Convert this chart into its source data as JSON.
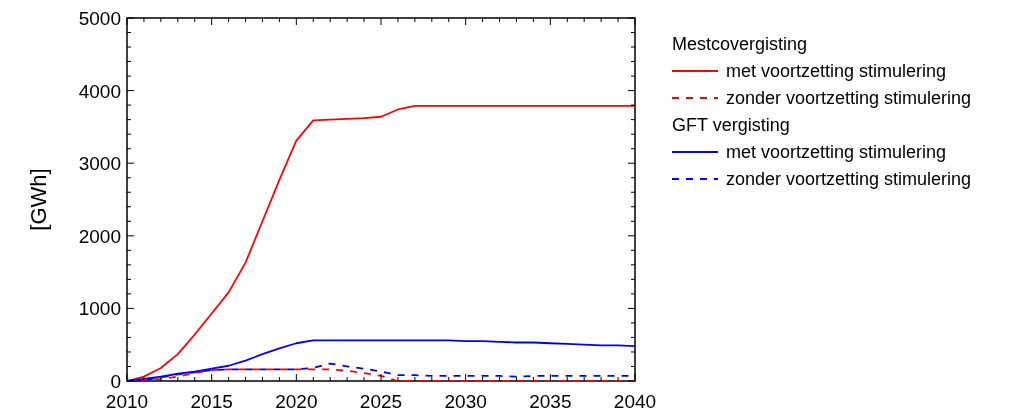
{
  "chart_data": {
    "type": "line",
    "ylabel": "[GWh]",
    "annotations": [
      "Mestcovergisting",
      "GFT vergisting"
    ],
    "x": [
      2010,
      2011,
      2012,
      2013,
      2014,
      2015,
      2016,
      2017,
      2018,
      2019,
      2020,
      2021,
      2022,
      2023,
      2024,
      2025,
      2026,
      2027,
      2028,
      2029,
      2030,
      2031,
      2032,
      2033,
      2034,
      2035,
      2036,
      2037,
      2038,
      2039,
      2040
    ],
    "series": [
      {
        "name": "met voortzetting stimulering",
        "color": "#ff0000",
        "line_style": "solid",
        "values": [
          0,
          60,
          180,
          370,
          640,
          930,
          1220,
          1630,
          2200,
          2770,
          3310,
          3590,
          3600,
          3610,
          3620,
          3640,
          3740,
          3790,
          3790,
          3790,
          3790,
          3790,
          3790,
          3790,
          3790,
          3790,
          3790,
          3790,
          3790,
          3790,
          3790
        ]
      },
      {
        "name": "zonder voortzetting stimulering",
        "color": "#ff0000",
        "line_style": "dashed",
        "values": [
          0,
          10,
          30,
          60,
          110,
          150,
          160,
          160,
          160,
          160,
          160,
          160,
          160,
          140,
          110,
          70,
          0,
          0,
          0,
          0,
          0,
          0,
          0,
          0,
          0,
          0,
          0,
          0,
          0,
          0,
          0
        ]
      },
      {
        "name": "met voortzetting stimulering",
        "color": "#0000ff",
        "line_style": "solid",
        "values": [
          0,
          30,
          60,
          100,
          130,
          170,
          210,
          280,
          370,
          450,
          520,
          560,
          560,
          560,
          560,
          560,
          560,
          560,
          560,
          560,
          550,
          550,
          540,
          530,
          530,
          520,
          510,
          500,
          490,
          490,
          480
        ]
      },
      {
        "name": "zonder voortzetting stimulering",
        "color": "#0000ff",
        "line_style": "dashed",
        "values": [
          0,
          10,
          50,
          90,
          120,
          150,
          160,
          160,
          160,
          160,
          160,
          180,
          240,
          200,
          170,
          130,
          80,
          80,
          70,
          70,
          70,
          70,
          70,
          60,
          70,
          70,
          70,
          70,
          70,
          70,
          70
        ]
      }
    ],
    "xlim": [
      2010,
      2040
    ],
    "ylim": [
      0,
      5000
    ],
    "xticks": [
      2010,
      {
        "value": 2011,
        "label": null
      },
      {
        "value": 2012,
        "label": null
      },
      {
        "value": 2013,
        "label": null
      },
      {
        "value": 2014,
        "label": null
      },
      2015,
      {
        "value": 2016,
        "label": null
      },
      {
        "value": 2017,
        "label": null
      },
      {
        "value": 2018,
        "label": null
      },
      {
        "value": 2019,
        "label": null
      },
      2020,
      {
        "value": 2021,
        "label": null
      },
      {
        "value": 2022,
        "label": null
      },
      {
        "value": 2023,
        "label": null
      },
      {
        "value": 2024,
        "label": null
      },
      2025,
      {
        "value": 2026,
        "label": null
      },
      {
        "value": 2027,
        "label": null
      },
      {
        "value": 2028,
        "label": null
      },
      {
        "value": 2029,
        "label": null
      },
      2030,
      {
        "value": 2031,
        "label": null
      },
      {
        "value": 2032,
        "label": null
      },
      {
        "value": 2033,
        "label": null
      },
      {
        "value": 2034,
        "label": null
      },
      2035,
      {
        "value": 2036,
        "label": null
      },
      {
        "value": 2037,
        "label": null
      },
      {
        "value": 2038,
        "label": null
      },
      {
        "value": 2039,
        "label": null
      },
      2040
    ],
    "yticks": [
      0,
      {
        "value": 200,
        "label": null
      },
      {
        "value": 400,
        "label": null
      },
      {
        "value": 600,
        "label": null
      },
      {
        "value": 800,
        "label": null
      },
      1000,
      {
        "value": 1200,
        "label": null
      },
      {
        "value": 1400,
        "label": null
      },
      {
        "value": 1600,
        "label": null
      },
      {
        "value": 1800,
        "label": null
      },
      2000,
      {
        "value": 2200,
        "label": null
      },
      {
        "value": 2400,
        "label": null
      },
      {
        "value": 2600,
        "label": null
      },
      {
        "value": 2800,
        "label": null
      },
      3000,
      {
        "value": 3200,
        "label": null
      },
      {
        "value": 3400,
        "label": null
      },
      {
        "value": 3600,
        "label": null
      },
      {
        "value": 3800,
        "label": null
      },
      4000,
      {
        "value": 4200,
        "label": null
      },
      {
        "value": 4400,
        "label": null
      },
      {
        "value": 4600,
        "label": null
      },
      {
        "value": 4800,
        "label": null
      },
      5000
    ],
    "grid": false,
    "legend": "right",
    "marker": "none"
  }
}
